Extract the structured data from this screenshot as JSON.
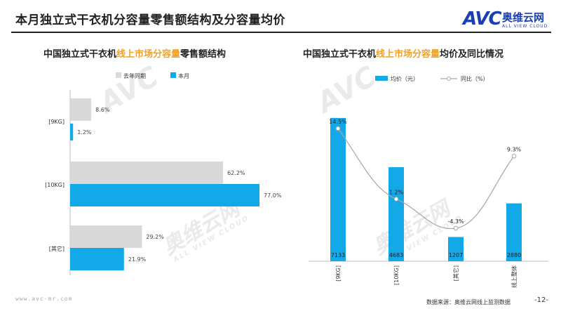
{
  "header": {
    "title": "本月独立式干衣机分容量零售额结构及分容量均价",
    "logo_mark": "AVC",
    "logo_cn": "奥维云网",
    "logo_en": "ALL VIEW CLOUD"
  },
  "watermark": {
    "mark": "AVC",
    "cn": "奥维云网",
    "en": "ALL VIEW CLOUD"
  },
  "footer": {
    "url": "www.avc-mr.com",
    "source": "数据来源：奥维云网线上监测数据",
    "page": "-12-"
  },
  "colors": {
    "last_year": "#d9d9d9",
    "this_month": "#13a9e8",
    "yoy_line": "#a6a6a6",
    "highlight": "#f0a12a"
  },
  "chart_data": [
    {
      "type": "bar",
      "orientation": "horizontal",
      "title_prefix": "中国独立式干衣机",
      "title_highlight": "线上市场分容量",
      "title_suffix": "零售额结构",
      "categories": [
        "[9KG]",
        "[10KG]",
        "[其它]"
      ],
      "series": [
        {
          "name": "去年同期",
          "values": [
            8.6,
            62.2,
            29.2
          ],
          "labels": [
            "8.6%",
            "62.2%",
            "29.2%"
          ]
        },
        {
          "name": "本月",
          "values": [
            1.2,
            77.0,
            21.9
          ],
          "labels": [
            "1.2%",
            "77.0%",
            "21.9%"
          ]
        }
      ],
      "legend_position": "top",
      "xlim": [
        0,
        100
      ]
    },
    {
      "type": "bar+line",
      "title_prefix": "中国独立式干衣机",
      "title_highlight": "线上市场分容量",
      "title_suffix": "均价及同比情况",
      "categories": [
        "[9KG]",
        "[10KG]",
        "[其它]",
        "线上整体"
      ],
      "bar_series": {
        "name": "均价（元）",
        "values": [
          7133,
          4683,
          1207,
          2880
        ],
        "labels": [
          "7133",
          "4683",
          "1207",
          "2880"
        ]
      },
      "line_series": {
        "name": "同比（%）",
        "values": [
          14.5,
          1.2,
          -4.3,
          9.3
        ],
        "labels": [
          "14.5%",
          "1.2%",
          "-4.3%",
          "9.3%"
        ]
      },
      "legend_position": "top"
    }
  ]
}
